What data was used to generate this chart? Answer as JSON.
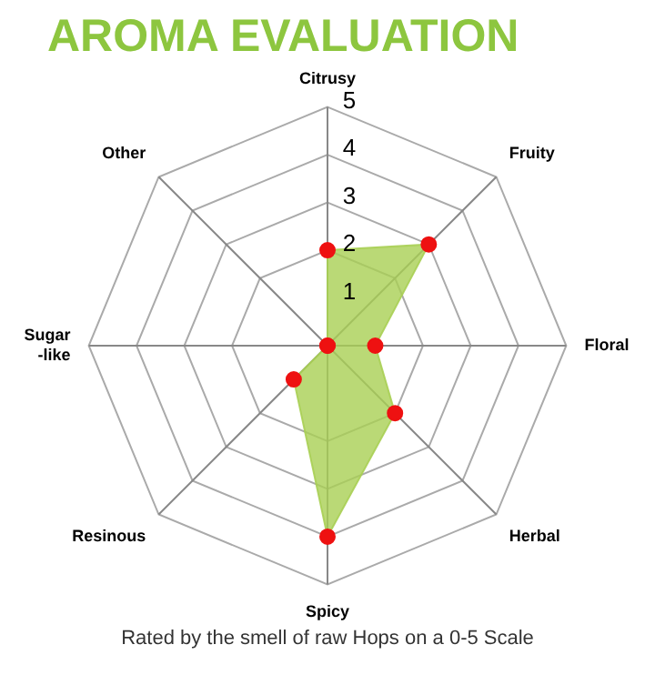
{
  "chart_data": {
    "type": "radar",
    "title": "AROMA EVALUATION",
    "categories": [
      "Citrusy",
      "Fruity",
      "Floral",
      "Herbal",
      "Spicy",
      "Resinous",
      "Sugar\n-like",
      "Other"
    ],
    "series": [
      {
        "color": "#a9cf54",
        "values": [
          2,
          3,
          1,
          2,
          4,
          1,
          0,
          0
        ]
      }
    ],
    "ylim": [
      0,
      5
    ],
    "yticks": [
      1,
      2,
      3,
      4,
      5
    ],
    "marker": "circle",
    "legend": false,
    "annotations": [
      "Rated by the smell of raw Hops on a 0-5 Scale"
    ]
  }
}
